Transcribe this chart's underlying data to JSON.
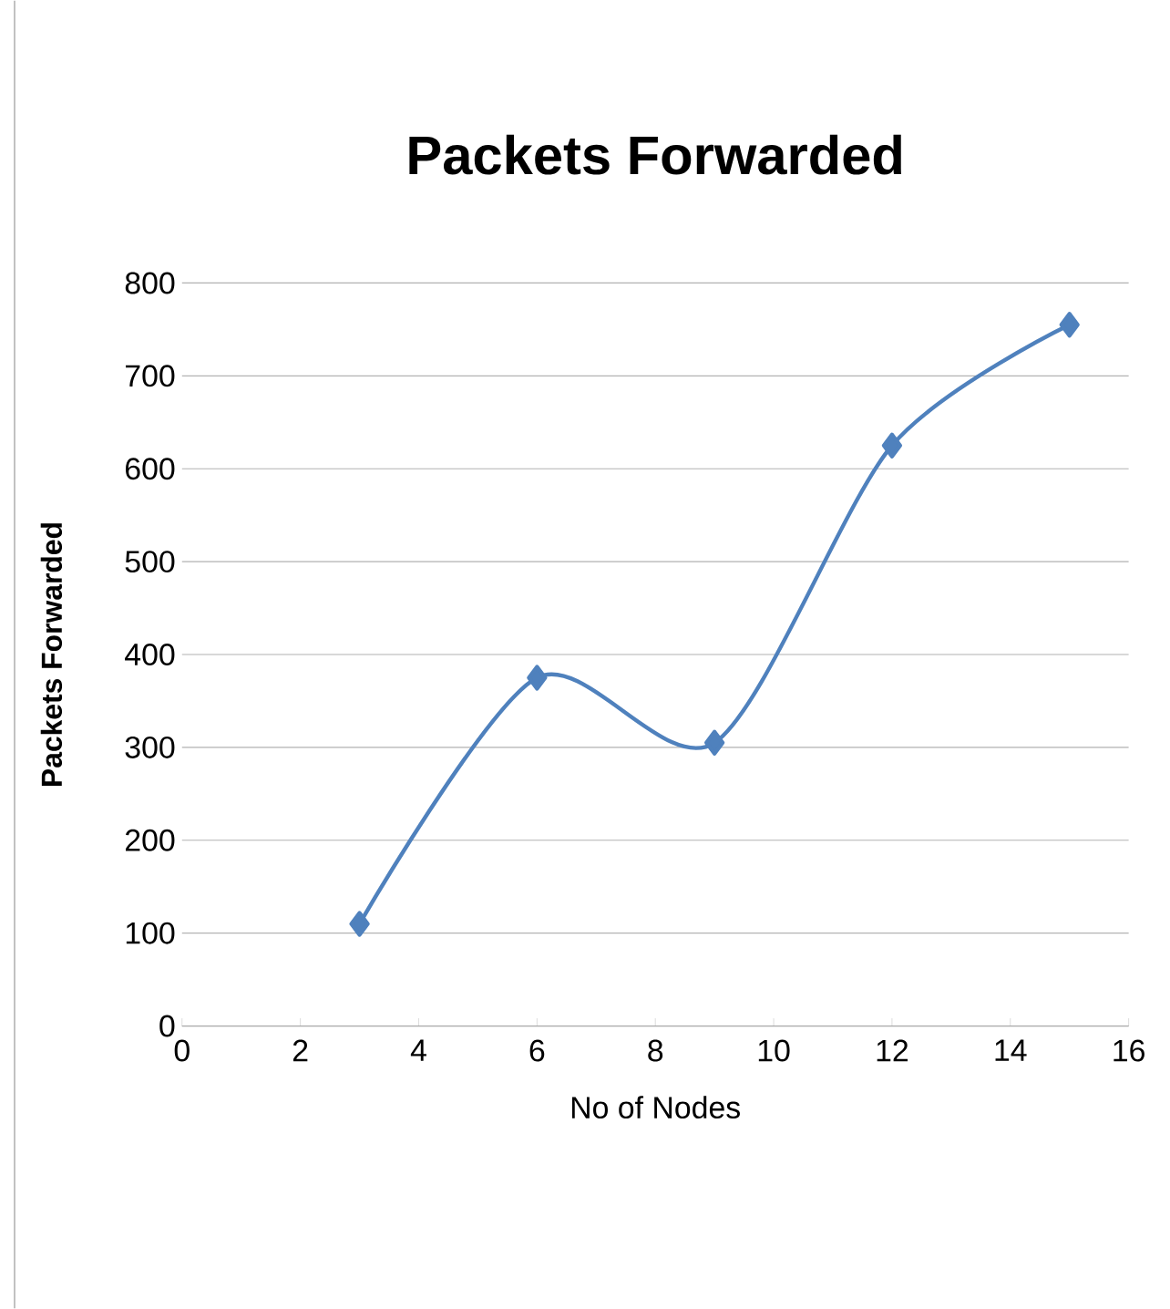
{
  "chart_data": {
    "type": "line",
    "title": "Packets Forwarded",
    "xlabel": "No of Nodes",
    "ylabel": "Packets Forwarded",
    "x": [
      3,
      6,
      9,
      12,
      15
    ],
    "series": [
      {
        "color": "#4f81bd",
        "values": [
          110,
          375,
          305,
          625,
          755
        ]
      }
    ],
    "xlim": [
      0,
      16
    ],
    "xticks": [
      0,
      2,
      4,
      6,
      8,
      10,
      12,
      14,
      16
    ],
    "ylim": [
      0,
      800
    ],
    "yticks": [
      0,
      100,
      200,
      300,
      400,
      500,
      600,
      700,
      800
    ],
    "grid": "y",
    "marker": "diamond"
  }
}
